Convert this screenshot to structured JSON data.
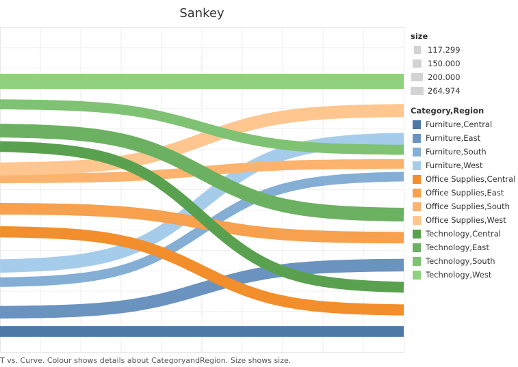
{
  "title": "Sankey",
  "caption": "T vs. Curve.  Colour shows details about CategoryandRegion. Size shows size.",
  "legend": {
    "size_title": "size",
    "size_items": [
      {
        "label": "117.299",
        "value": 117.299
      },
      {
        "label": "150.000",
        "value": 150.0
      },
      {
        "label": "200.000",
        "value": 200.0
      },
      {
        "label": "264.974",
        "value": 264.974
      }
    ],
    "category_title": "Category,Region",
    "categories": [
      {
        "label": "Furniture,Central",
        "color": "#4e79a7"
      },
      {
        "label": "Furniture,East",
        "color": "#6b93c0"
      },
      {
        "label": "Furniture,South",
        "color": "#85aed5"
      },
      {
        "label": "Furniture,West",
        "color": "#a6cceb"
      },
      {
        "label": "Office Supplies,Central",
        "color": "#f28e2b"
      },
      {
        "label": "Office Supplies,East",
        "color": "#f7a04d"
      },
      {
        "label": "Office Supplies,South",
        "color": "#fbb36e"
      },
      {
        "label": "Office Supplies,West",
        "color": "#ffc68f"
      },
      {
        "label": "Technology,Central",
        "color": "#59a14f"
      },
      {
        "label": "Technology,East",
        "color": "#6cb161"
      },
      {
        "label": "Technology,South",
        "color": "#7fc273"
      },
      {
        "label": "Technology,West",
        "color": "#8fd17e"
      }
    ]
  },
  "chart_data": {
    "type": "area",
    "title": "Sankey",
    "xlabel": "T",
    "ylabel": "Curve",
    "xlim": [
      0,
      1
    ],
    "ylim": [
      0,
      1
    ],
    "grid": true,
    "legend_position": "right",
    "series": [
      {
        "name": "Furniture,Central",
        "size": 150.0,
        "y_start": 0.0,
        "y_end": 0.0
      },
      {
        "name": "Furniture,East",
        "size": 200.0,
        "y_start": 0.065,
        "y_end": 0.225
      },
      {
        "name": "Furniture,South",
        "size": 117.299,
        "y_start": 0.167,
        "y_end": 0.525
      },
      {
        "name": "Furniture,West",
        "size": 220.0,
        "y_start": 0.222,
        "y_end": 0.651
      },
      {
        "name": "Office Supplies,Central",
        "size": 160.0,
        "y_start": 0.338,
        "y_end": 0.073
      },
      {
        "name": "Office Supplies,East",
        "size": 170.0,
        "y_start": 0.416,
        "y_end": 0.318
      },
      {
        "name": "Office Supplies,South",
        "size": 117.299,
        "y_start": 0.519,
        "y_end": 0.568
      },
      {
        "name": "Office Supplies,West",
        "size": 210.0,
        "y_start": 0.551,
        "y_end": 0.749
      },
      {
        "name": "Technology,Central",
        "size": 150.0,
        "y_start": 0.627,
        "y_end": 0.15
      },
      {
        "name": "Technology,East",
        "size": 230.0,
        "y_start": 0.681,
        "y_end": 0.396
      },
      {
        "name": "Technology,South",
        "size": 130.0,
        "y_start": 0.77,
        "y_end": 0.616
      },
      {
        "name": "Technology,West",
        "size": 264.974,
        "y_start": 0.848,
        "y_end": 0.848
      }
    ]
  }
}
